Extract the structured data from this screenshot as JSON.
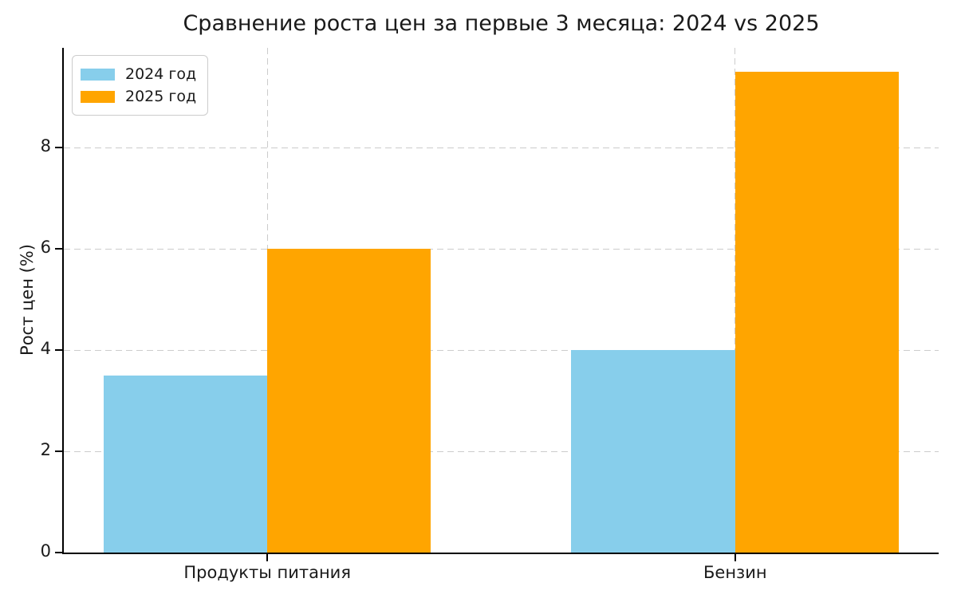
{
  "chart_data": {
    "type": "bar",
    "title": "Сравнение роста цен за первые 3 месяца: 2024 vs 2025",
    "ylabel": "Рост цен (%)",
    "xlabel": "",
    "categories": [
      "Продукты питания",
      "Бензин"
    ],
    "series": [
      {
        "name": "2024 год",
        "color": "#87CEEB",
        "values": [
          3.5,
          4.0
        ]
      },
      {
        "name": "2025 год",
        "color": "#FFA500",
        "values": [
          6.0,
          9.5
        ]
      }
    ],
    "yticks": [
      0,
      2,
      4,
      6,
      8
    ],
    "ylim": [
      0,
      9.975
    ],
    "xlim": [
      -0.435,
      1.435
    ],
    "bar_width": 0.35,
    "grid": true,
    "grid_style": "dashed",
    "grid_color": "#cccccc",
    "axis_color": "#000000",
    "text_color": "#1a1a1a",
    "background_color": "#ffffff",
    "legend_position": "upper left"
  }
}
